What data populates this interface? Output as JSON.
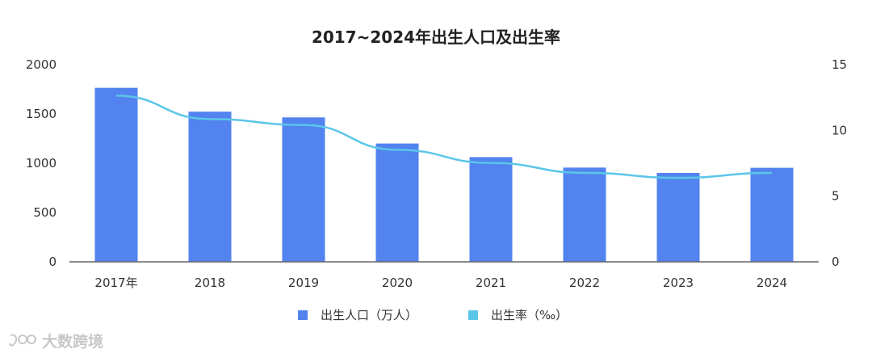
{
  "title": "2017~2024年出生人口及出生率",
  "legend": {
    "bar_label": "出生人口（万人）",
    "line_label": "出生率（‰）"
  },
  "watermark": "大数跨境",
  "colors": {
    "bar": "#5283ef",
    "line": "#5bc6e8",
    "axis": "#666666"
  },
  "chart_data": {
    "type": "bar",
    "categories": [
      "2017年",
      "2018",
      "2019",
      "2020",
      "2021",
      "2022",
      "2023",
      "2024"
    ],
    "series": [
      {
        "name": "出生人口（万人）",
        "type": "bar",
        "axis": "left",
        "values": [
          1765,
          1523,
          1465,
          1200,
          1062,
          956,
          902,
          954
        ]
      },
      {
        "name": "出生率（‰）",
        "type": "line",
        "axis": "right",
        "values": [
          12.64,
          10.86,
          10.41,
          8.52,
          7.52,
          6.77,
          6.39,
          6.77
        ]
      }
    ],
    "y_left": {
      "min": 0,
      "max": 2000,
      "ticks": [
        0,
        500,
        1000,
        1500,
        2000
      ]
    },
    "y_right": {
      "min": 0,
      "max": 15,
      "ticks": [
        0,
        5,
        10,
        15
      ]
    },
    "grid": false,
    "legend_position": "bottom"
  }
}
